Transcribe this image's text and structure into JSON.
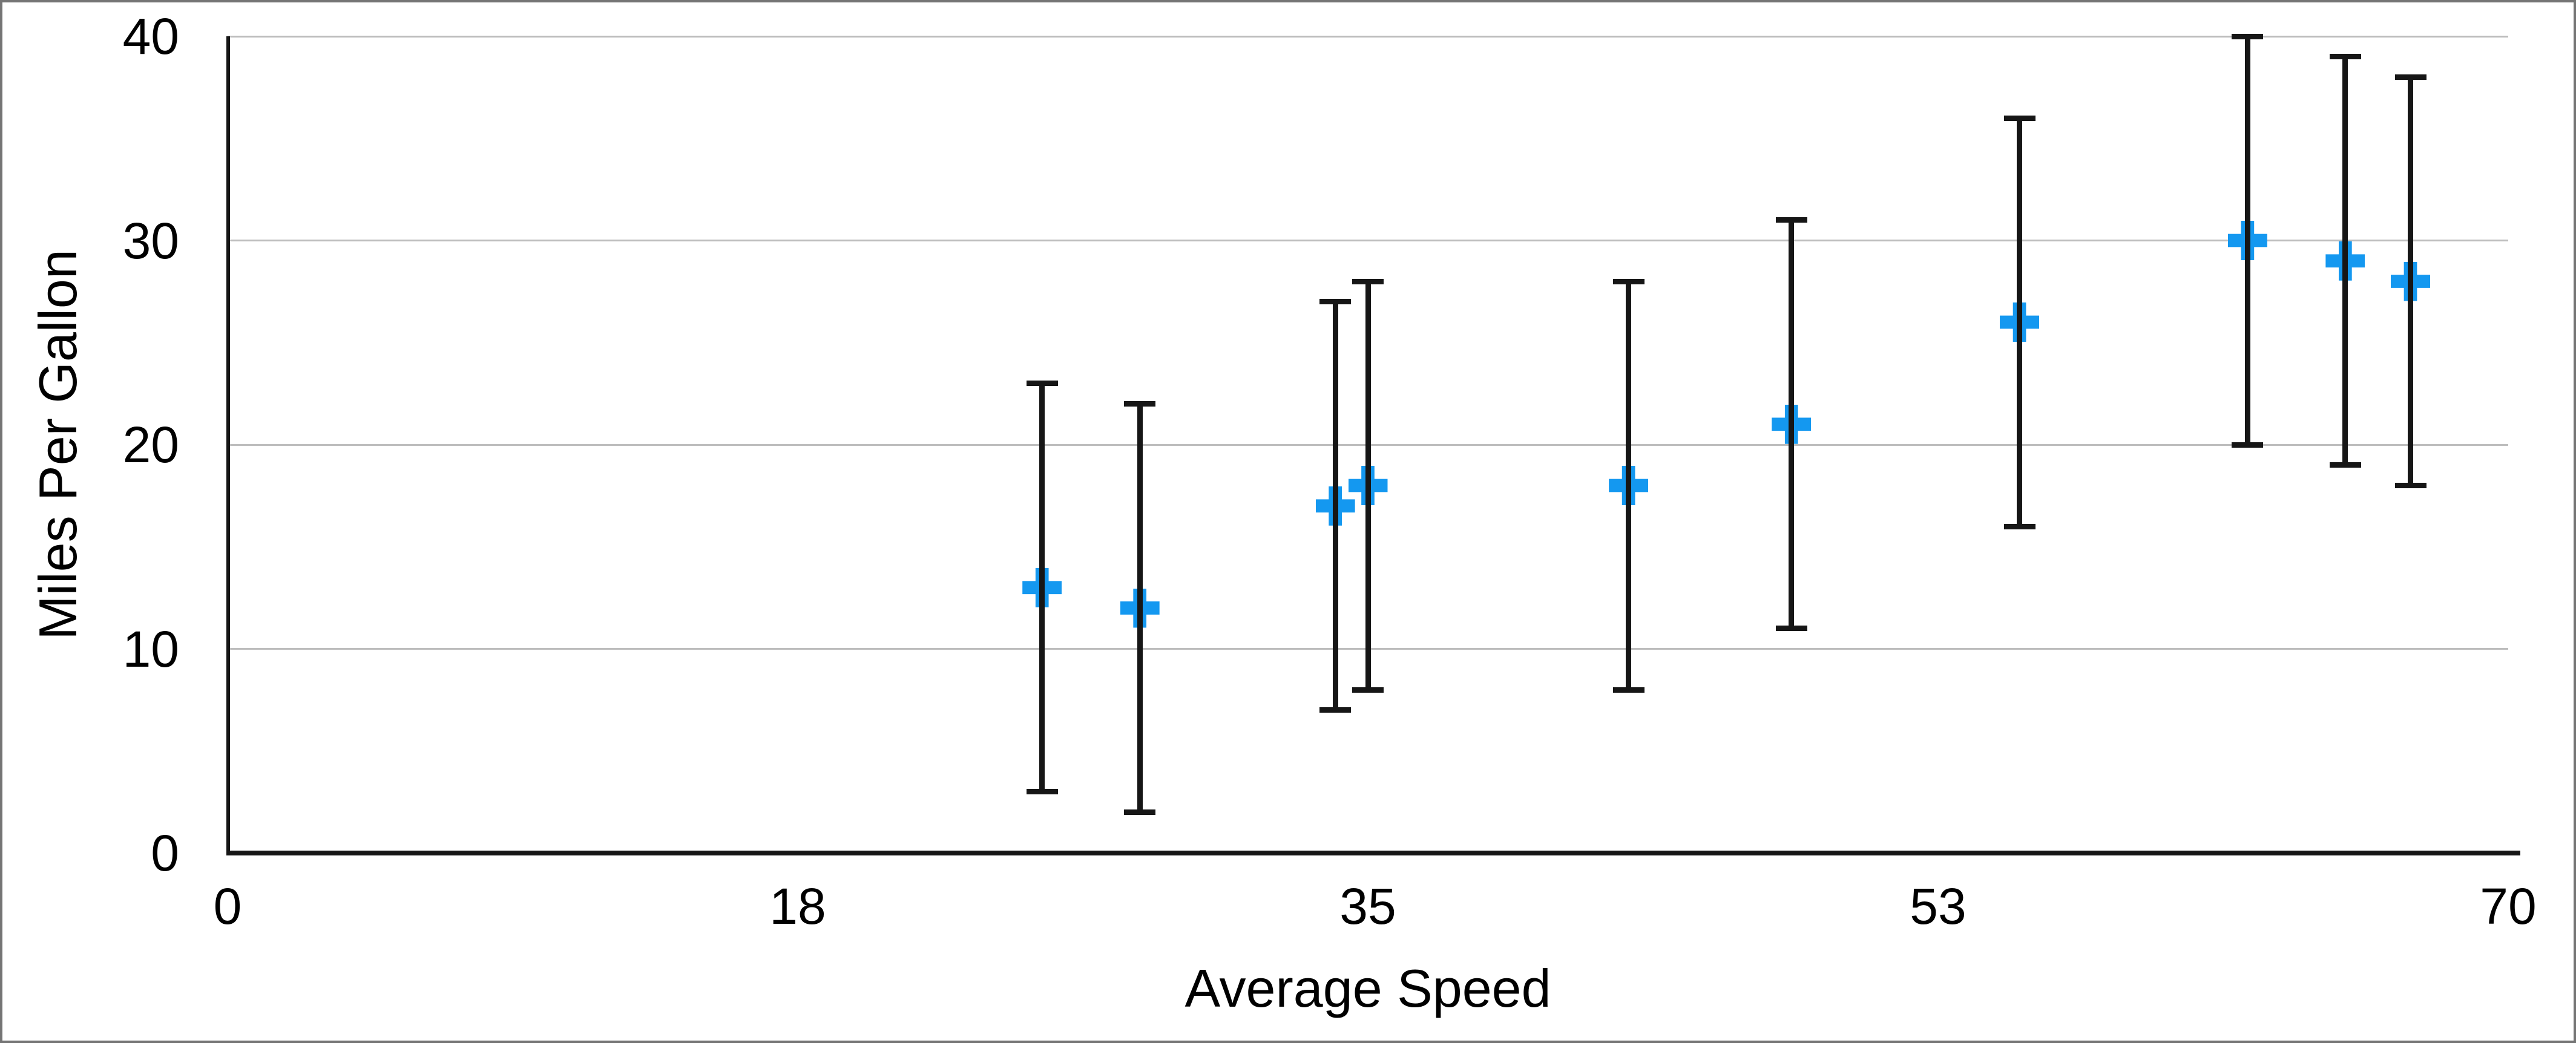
{
  "chart_data": {
    "type": "scatter",
    "title": "",
    "xlabel": "Average Speed",
    "ylabel": "Miles Per Gallon",
    "xlim": [
      0,
      70
    ],
    "ylim": [
      0,
      40
    ],
    "x_tick_labels": [
      "0",
      "18",
      "35",
      "53",
      "70"
    ],
    "x_tick_positions": [
      0,
      17.5,
      35,
      52.5,
      70
    ],
    "y_tick_labels": [
      "0",
      "10",
      "20",
      "30",
      "40"
    ],
    "y_tick_values": [
      0,
      10,
      20,
      30,
      40
    ],
    "grid": "horizontal-only",
    "legend_position": "none",
    "marker_shape": "plus",
    "marker_color": "#1498F0",
    "error_bar_color": "#161616",
    "gridline_color": "#bdbdbd",
    "error_bars": "symmetric, ±10 on y for every point",
    "points": [
      {
        "x": 25,
        "y": 13,
        "error_plus": 10,
        "error_minus": 10
      },
      {
        "x": 28,
        "y": 12,
        "error_plus": 10,
        "error_minus": 10
      },
      {
        "x": 34,
        "y": 17,
        "error_plus": 10,
        "error_minus": 10
      },
      {
        "x": 35,
        "y": 18,
        "error_plus": 10,
        "error_minus": 10
      },
      {
        "x": 43,
        "y": 18,
        "error_plus": 10,
        "error_minus": 10
      },
      {
        "x": 48,
        "y": 21,
        "error_plus": 10,
        "error_minus": 10
      },
      {
        "x": 55,
        "y": 26,
        "error_plus": 10,
        "error_minus": 10
      },
      {
        "x": 62,
        "y": 30,
        "error_plus": 10,
        "error_minus": 10
      },
      {
        "x": 65,
        "y": 29,
        "error_plus": 10,
        "error_minus": 10
      },
      {
        "x": 67,
        "y": 28,
        "error_plus": 10,
        "error_minus": 10
      }
    ]
  }
}
